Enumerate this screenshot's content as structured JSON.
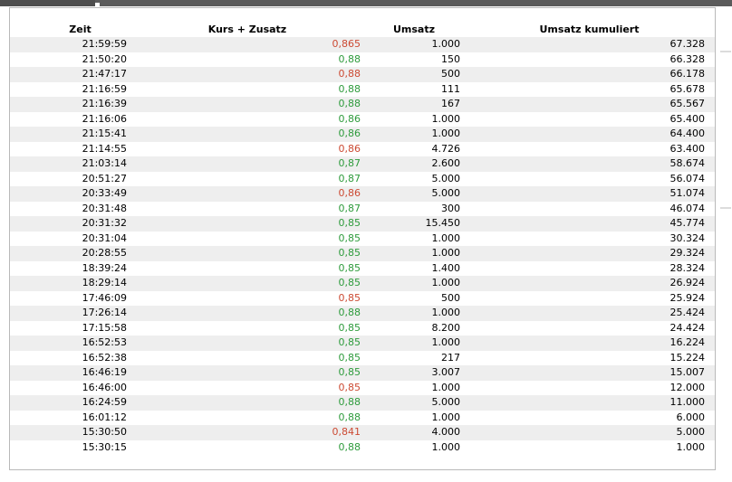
{
  "table": {
    "headers": [
      "Zeit",
      "Kurs + Zusatz",
      "Umsatz",
      "Umsatz kumuliert"
    ],
    "rows": [
      {
        "zeit": "21:59:59",
        "kurs": "0,865",
        "dir": "down",
        "umsatz": "1.000",
        "kumuliert": "67.328"
      },
      {
        "zeit": "21:50:20",
        "kurs": "0,88",
        "dir": "up",
        "umsatz": "150",
        "kumuliert": "66.328"
      },
      {
        "zeit": "21:47:17",
        "kurs": "0,88",
        "dir": "down",
        "umsatz": "500",
        "kumuliert": "66.178"
      },
      {
        "zeit": "21:16:59",
        "kurs": "0,88",
        "dir": "up",
        "umsatz": "111",
        "kumuliert": "65.678"
      },
      {
        "zeit": "21:16:39",
        "kurs": "0,88",
        "dir": "up",
        "umsatz": "167",
        "kumuliert": "65.567"
      },
      {
        "zeit": "21:16:06",
        "kurs": "0,86",
        "dir": "up",
        "umsatz": "1.000",
        "kumuliert": "65.400"
      },
      {
        "zeit": "21:15:41",
        "kurs": "0,86",
        "dir": "up",
        "umsatz": "1.000",
        "kumuliert": "64.400"
      },
      {
        "zeit": "21:14:55",
        "kurs": "0,86",
        "dir": "down",
        "umsatz": "4.726",
        "kumuliert": "63.400"
      },
      {
        "zeit": "21:03:14",
        "kurs": "0,87",
        "dir": "up",
        "umsatz": "2.600",
        "kumuliert": "58.674"
      },
      {
        "zeit": "20:51:27",
        "kurs": "0,87",
        "dir": "up",
        "umsatz": "5.000",
        "kumuliert": "56.074"
      },
      {
        "zeit": "20:33:49",
        "kurs": "0,86",
        "dir": "down",
        "umsatz": "5.000",
        "kumuliert": "51.074"
      },
      {
        "zeit": "20:31:48",
        "kurs": "0,87",
        "dir": "up",
        "umsatz": "300",
        "kumuliert": "46.074"
      },
      {
        "zeit": "20:31:32",
        "kurs": "0,85",
        "dir": "up",
        "umsatz": "15.450",
        "kumuliert": "45.774"
      },
      {
        "zeit": "20:31:04",
        "kurs": "0,85",
        "dir": "up",
        "umsatz": "1.000",
        "kumuliert": "30.324"
      },
      {
        "zeit": "20:28:55",
        "kurs": "0,85",
        "dir": "up",
        "umsatz": "1.000",
        "kumuliert": "29.324"
      },
      {
        "zeit": "18:39:24",
        "kurs": "0,85",
        "dir": "up",
        "umsatz": "1.400",
        "kumuliert": "28.324"
      },
      {
        "zeit": "18:29:14",
        "kurs": "0,85",
        "dir": "up",
        "umsatz": "1.000",
        "kumuliert": "26.924"
      },
      {
        "zeit": "17:46:09",
        "kurs": "0,85",
        "dir": "down",
        "umsatz": "500",
        "kumuliert": "25.924"
      },
      {
        "zeit": "17:26:14",
        "kurs": "0,88",
        "dir": "up",
        "umsatz": "1.000",
        "kumuliert": "25.424"
      },
      {
        "zeit": "17:15:58",
        "kurs": "0,85",
        "dir": "up",
        "umsatz": "8.200",
        "kumuliert": "24.424"
      },
      {
        "zeit": "16:52:53",
        "kurs": "0,85",
        "dir": "up",
        "umsatz": "1.000",
        "kumuliert": "16.224"
      },
      {
        "zeit": "16:52:38",
        "kurs": "0,85",
        "dir": "up",
        "umsatz": "217",
        "kumuliert": "15.224"
      },
      {
        "zeit": "16:46:19",
        "kurs": "0,85",
        "dir": "up",
        "umsatz": "3.007",
        "kumuliert": "15.007"
      },
      {
        "zeit": "16:46:00",
        "kurs": "0,85",
        "dir": "down",
        "umsatz": "1.000",
        "kumuliert": "12.000"
      },
      {
        "zeit": "16:24:59",
        "kurs": "0,88",
        "dir": "up",
        "umsatz": "5.000",
        "kumuliert": "11.000"
      },
      {
        "zeit": "16:01:12",
        "kurs": "0,88",
        "dir": "up",
        "umsatz": "1.000",
        "kumuliert": "6.000"
      },
      {
        "zeit": "15:30:50",
        "kurs": "0,841",
        "dir": "down",
        "umsatz": "4.000",
        "kumuliert": "5.000"
      },
      {
        "zeit": "15:30:15",
        "kurs": "0,88",
        "dir": "up",
        "umsatz": "1.000",
        "kumuliert": "1.000"
      }
    ]
  },
  "colors": {
    "price_up": "#2e9b3c",
    "price_down": "#cc4a33",
    "row_alt": "#eeeeee",
    "border": "#b9b9b9",
    "topbar": "#5b5b5b",
    "topbar_left": "#4e4e4e"
  }
}
